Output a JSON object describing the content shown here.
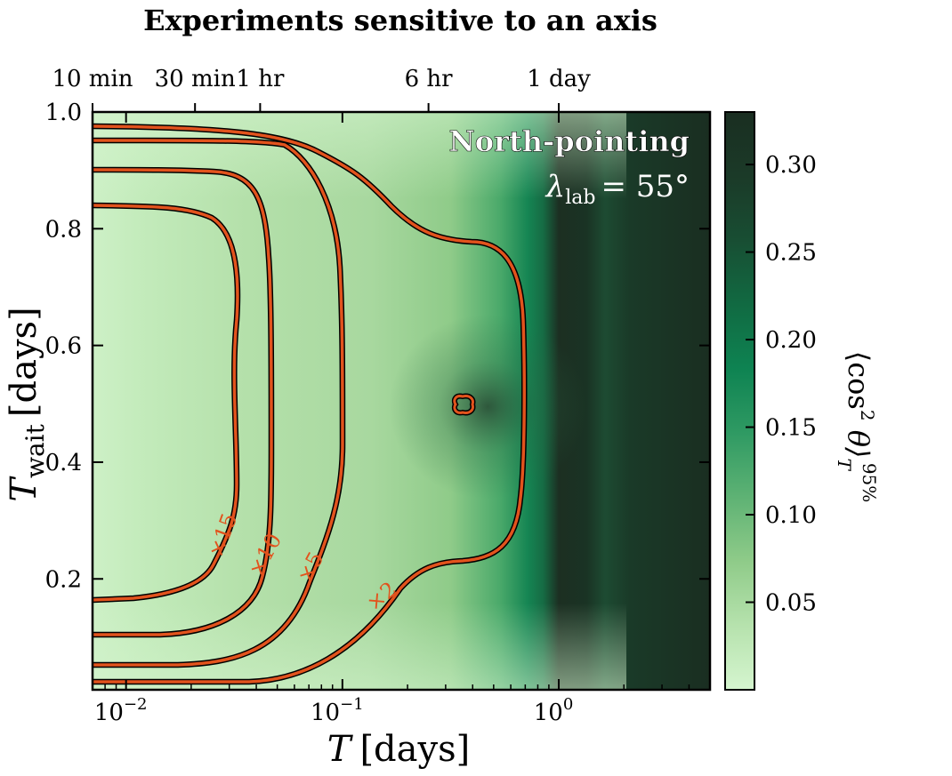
{
  "chart_data": {
    "type": "heatmap",
    "title": "Experiments sensitive to an axis",
    "xlabel": {
      "var": "T",
      "unit": "[days]"
    },
    "ylabel": {
      "var": "T",
      "sub": "wait",
      "unit": "[days]"
    },
    "xscale": "log",
    "xlim": [
      0.007,
      5.0
    ],
    "ylim": [
      0.01,
      1.0
    ],
    "x_ticks": [
      {
        "value": 0.01,
        "base": "10",
        "exp": "−2"
      },
      {
        "value": 0.1,
        "base": "10",
        "exp": "−1"
      },
      {
        "value": 1.0,
        "base": "10",
        "exp": "0"
      }
    ],
    "y_ticks": [
      "0.2",
      "0.4",
      "0.6",
      "0.8",
      "1.0"
    ],
    "top_axis_ticks": [
      {
        "label": "10 min",
        "days": 0.006944
      },
      {
        "label": "30 min",
        "days": 0.020833
      },
      {
        "label": "1 hr",
        "days": 0.041667
      },
      {
        "label": "6 hr",
        "days": 0.25
      },
      {
        "label": "1 day",
        "days": 1.0
      }
    ],
    "annotation": {
      "title": "North-pointing",
      "latitude_symbol": "λ",
      "latitude_sub": "lab",
      "latitude_value": "= 55°"
    },
    "colorbar": {
      "label_main": "⟨cos",
      "label_sq": "2",
      "label_theta": " θ⟩",
      "label_sub": "T",
      "label_sup": "95%",
      "range": [
        0.0,
        0.33
      ],
      "ticks": [
        "0.05",
        "0.10",
        "0.15",
        "0.20",
        "0.25",
        "0.30"
      ],
      "colors": [
        "#d5f5cf",
        "#b6e2ad",
        "#8fcb89",
        "#5eb274",
        "#2f9a63",
        "#0e8352",
        "#116a42",
        "#184e33",
        "#1b3a28",
        "#1a2e21"
      ]
    },
    "contours": [
      {
        "label": "×2",
        "level": 2
      },
      {
        "label": "×5",
        "level": 5
      },
      {
        "label": "×10",
        "level": 10
      },
      {
        "label": "×15",
        "level": 15
      }
    ],
    "contour_color": "#e2531d"
  }
}
